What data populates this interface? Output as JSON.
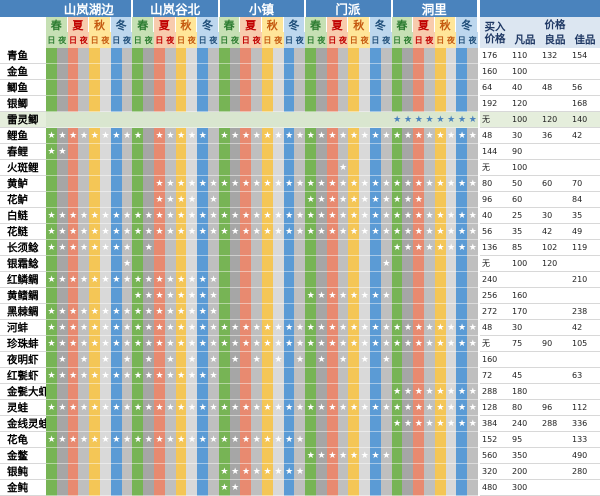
{
  "locations": [
    "山岚湖边",
    "山岚谷北",
    "小镇",
    "门派",
    "洞里"
  ],
  "seasons": [
    {
      "name": "春",
      "bg": "#c6e0b4",
      "fg": "#2e7d32"
    },
    {
      "name": "夏",
      "bg": "#f8cbad",
      "fg": "#c00000"
    },
    {
      "name": "秋",
      "bg": "#ffe699",
      "fg": "#c55a11"
    },
    {
      "name": "冬",
      "bg": "#bdd7ee",
      "fg": "#1f4e79"
    }
  ],
  "day_label": "日",
  "night_label": "夜",
  "lane_colors": [
    "#77b455",
    "#a6a6a6",
    "#e88a70",
    "#bfbfbf",
    "#f4c656",
    "#d9d9d9",
    "#5b9bd5",
    "#bfbfbf"
  ],
  "star": "★",
  "headers": {
    "buy": "买入价格",
    "price": "价格",
    "common": "凡品",
    "good": "良品",
    "best": "佳品"
  },
  "highlight_row": 4,
  "fish": [
    {
      "name": "青鱼",
      "buy": "176",
      "p1": "110",
      "p2": "132",
      "p3": "154",
      "stars": [
        []
      ]
    },
    {
      "name": "金鱼",
      "buy": "160",
      "p1": "100",
      "p2": "",
      "p3": "",
      "stars": []
    },
    {
      "name": "鲫鱼",
      "buy": "64",
      "p1": "40",
      "p2": "48",
      "p3": "56",
      "stars": []
    },
    {
      "name": "银鲫",
      "buy": "192",
      "p1": "120",
      "p2": "",
      "p3": "168",
      "stars": []
    },
    {
      "name": "雷灵鲫",
      "buy": "无",
      "p1": "100",
      "p2": "120",
      "p3": "140",
      "stars": []
    },
    {
      "name": "鲤鱼",
      "buy": "48",
      "p1": "30",
      "p2": "36",
      "p3": "42",
      "stars": []
    },
    {
      "name": "春鲤",
      "buy": "144",
      "p1": "90",
      "p2": "",
      "p3": "",
      "stars": []
    },
    {
      "name": "火斑鲤",
      "buy": "无",
      "p1": "100",
      "p2": "",
      "p3": "",
      "stars": []
    },
    {
      "name": "黄鲈",
      "buy": "80",
      "p1": "50",
      "p2": "60",
      "p3": "70",
      "stars": []
    },
    {
      "name": "花鲈",
      "buy": "96",
      "p1": "60",
      "p2": "",
      "p3": "84",
      "stars": []
    },
    {
      "name": "白鲢",
      "buy": "40",
      "p1": "25",
      "p2": "30",
      "p3": "35",
      "stars": []
    },
    {
      "name": "花鲢",
      "buy": "56",
      "p1": "35",
      "p2": "42",
      "p3": "49",
      "stars": []
    },
    {
      "name": "长须鲶",
      "buy": "136",
      "p1": "85",
      "p2": "102",
      "p3": "119",
      "stars": []
    },
    {
      "name": "银霜鲶",
      "buy": "无",
      "p1": "100",
      "p2": "120",
      "p3": "",
      "stars": []
    },
    {
      "name": "红鳞鲷",
      "buy": "240",
      "p1": "",
      "p2": "",
      "p3": "210",
      "stars": []
    },
    {
      "name": "黄鳍鲷",
      "buy": "256",
      "p1": "160",
      "p2": "",
      "p3": "",
      "stars": []
    },
    {
      "name": "黑棘鲷",
      "buy": "272",
      "p1": "170",
      "p2": "",
      "p3": "238",
      "stars": []
    },
    {
      "name": "河蚌",
      "buy": "48",
      "p1": "30",
      "p2": "",
      "p3": "42",
      "stars": []
    },
    {
      "name": "珍珠蚌",
      "buy": "无",
      "p1": "75",
      "p2": "90",
      "p3": "105",
      "stars": []
    },
    {
      "name": "夜明虾",
      "buy": "160",
      "p1": "",
      "p2": "",
      "p3": "",
      "stars": []
    },
    {
      "name": "红甏虾",
      "buy": "72",
      "p1": "45",
      "p2": "",
      "p3": "63",
      "stars": []
    },
    {
      "name": "金甏大虾",
      "buy": "288",
      "p1": "180",
      "p2": "",
      "p3": "",
      "stars": []
    },
    {
      "name": "灵蛙",
      "buy": "128",
      "p1": "80",
      "p2": "96",
      "p3": "112",
      "stars": []
    },
    {
      "name": "金线灵蛙",
      "buy": "384",
      "p1": "240",
      "p2": "288",
      "p3": "336",
      "stars": []
    },
    {
      "name": "花龟",
      "buy": "152",
      "p1": "95",
      "p2": "",
      "p3": "133",
      "stars": []
    },
    {
      "name": "金鳖",
      "buy": "560",
      "p1": "350",
      "p2": "",
      "p3": "490",
      "stars": []
    },
    {
      "name": "银鲀",
      "buy": "320",
      "p1": "200",
      "p2": "",
      "p3": "280",
      "stars": []
    },
    {
      "name": "金鲀",
      "buy": "480",
      "p1": "300",
      "p2": "",
      "p3": "",
      "stars": []
    }
  ],
  "star_map": [
    "0000000000000000000000000000000000000000",
    "0000000000000000000000000000000000000000",
    "0000000000000000000000000000000000000000",
    "0000000000000000000000000000000000000000",
    "0000000000000000000000000000000000000000",
    "0000000000000000000000000000000000000000",
    "0000000000000000000000000000000000000000",
    "0000000000000000000000000000000000000000",
    "0000000000000000000000000000000000000000",
    "0000000000000000000000000000000000000000",
    "0000000000000000000000000000000000000000",
    "0000000000000000000000000000000000000000",
    "0000000000000000000000000000000000000000",
    "0000000000000000000000000000000000000000",
    "0000000000000000000000000000000000000000",
    "0000000000000000000000000000000000000000",
    "0000000000000000000000000000000000000000",
    "0000000000000000000000000000000000000000",
    "0000000000000000000000000000000000000000",
    "0000000000000000000000000000000000000000",
    "0000000000000000000000000000000000000000",
    "0000000000000000000000000000000000000000",
    "0000000000000000000000000000000000000000",
    "0000000000000000000000000000000000000000",
    "0000000000000000000000000000000000000000",
    "0000000000000000000000000000000000000000",
    "0000000000000000000000000000000000000000",
    "0000000000000000000000000000000000000000"
  ],
  "stars": [
    [],
    [],
    [],
    [],
    [
      32,
      33,
      34,
      35,
      36,
      37,
      38,
      39
    ],
    [
      0,
      1,
      2,
      3,
      4,
      5,
      6,
      7,
      8,
      10,
      11,
      12,
      13,
      14,
      16,
      17,
      18,
      19,
      20,
      21,
      22,
      23,
      24,
      25,
      26,
      27,
      28,
      29,
      30,
      31,
      32,
      33,
      34,
      35,
      36,
      37,
      38,
      39
    ],
    [
      0,
      1
    ],
    [
      27
    ],
    [
      10,
      11,
      12,
      13,
      14,
      15,
      16,
      17,
      18,
      19,
      20,
      21,
      22,
      23,
      24,
      25,
      26,
      27,
      28,
      29,
      30,
      31,
      32,
      33,
      34,
      35,
      36,
      37,
      38,
      39
    ],
    [
      10,
      11,
      12,
      13,
      15,
      24,
      25,
      26,
      27,
      28,
      29,
      30,
      31,
      32,
      33,
      34
    ],
    [
      0,
      1,
      2,
      3,
      4,
      5,
      6,
      7,
      8,
      9,
      10,
      11,
      12,
      13,
      14,
      15,
      16,
      17,
      18,
      19,
      20,
      21,
      22,
      23,
      24,
      25,
      26,
      27,
      28,
      29,
      30,
      31,
      32,
      33,
      34,
      35,
      36,
      37,
      38,
      39
    ],
    [
      0,
      1,
      2,
      3,
      4,
      5,
      6,
      7,
      8,
      9,
      10,
      11,
      12,
      13,
      14,
      15,
      16,
      17,
      18,
      19,
      20,
      21,
      22,
      23,
      24,
      25,
      26,
      27,
      28,
      29,
      30,
      31,
      32,
      33,
      34,
      35,
      36,
      37,
      38,
      39
    ],
    [
      0,
      1,
      2,
      3,
      4,
      5,
      6,
      7,
      9,
      32,
      33,
      34,
      35,
      36,
      37,
      38,
      39
    ],
    [
      7,
      31
    ],
    [
      0,
      1,
      2,
      3,
      4,
      5,
      6,
      7,
      8,
      9,
      10,
      11,
      12,
      13,
      14,
      15
    ],
    [
      8,
      9,
      10,
      11,
      12,
      13,
      14,
      15,
      24,
      25,
      26,
      27,
      28,
      29,
      30,
      31
    ],
    [
      0,
      1,
      2,
      3,
      4,
      5,
      6,
      7,
      8,
      9,
      10,
      11,
      12,
      13,
      14,
      15
    ],
    [
      0,
      1,
      2,
      3,
      4,
      5,
      6,
      7,
      8,
      9,
      10,
      11,
      12,
      13,
      14,
      15,
      16,
      17,
      18,
      19,
      20,
      21,
      22,
      23,
      24,
      25,
      26,
      27,
      28,
      29,
      30,
      31,
      32,
      33,
      34,
      35,
      36,
      37,
      38,
      39
    ],
    [
      0,
      1,
      2,
      3,
      4,
      5,
      6,
      7,
      8,
      9,
      10,
      11,
      12,
      13,
      14,
      15,
      16,
      17,
      18,
      19,
      20,
      21,
      22,
      23,
      24,
      25,
      26,
      27,
      28,
      29,
      30,
      31,
      32,
      33,
      34,
      35,
      36,
      37,
      38,
      39
    ],
    [
      1,
      3,
      5,
      7,
      9,
      11,
      13,
      15,
      17,
      19,
      21,
      23,
      25,
      27,
      29,
      31
    ],
    [
      0,
      1,
      2,
      3,
      4,
      5,
      6,
      7,
      8,
      9,
      10,
      11,
      12,
      13,
      14,
      15
    ],
    [
      32,
      33,
      34,
      35,
      36,
      37,
      38,
      39
    ],
    [
      0,
      1,
      2,
      3,
      4,
      5,
      6,
      7,
      8,
      9,
      10,
      11,
      12,
      13,
      14,
      15,
      16,
      17,
      18,
      19,
      20,
      21,
      22,
      23,
      24,
      25,
      26,
      27,
      28,
      29,
      30,
      31,
      32,
      33,
      34,
      35,
      36,
      37,
      38,
      39
    ],
    [
      32,
      33,
      34,
      35,
      36,
      37,
      38,
      39
    ],
    [
      0,
      1,
      2,
      3,
      4,
      5,
      6,
      7,
      8,
      9,
      10,
      11,
      12,
      13,
      14,
      15,
      16,
      17,
      18,
      19,
      20,
      21,
      22,
      23
    ],
    [
      24,
      25,
      26,
      27,
      28,
      29,
      30,
      31
    ],
    [
      16,
      17,
      18,
      19,
      20,
      21,
      22,
      23
    ],
    [
      16,
      17
    ]
  ]
}
